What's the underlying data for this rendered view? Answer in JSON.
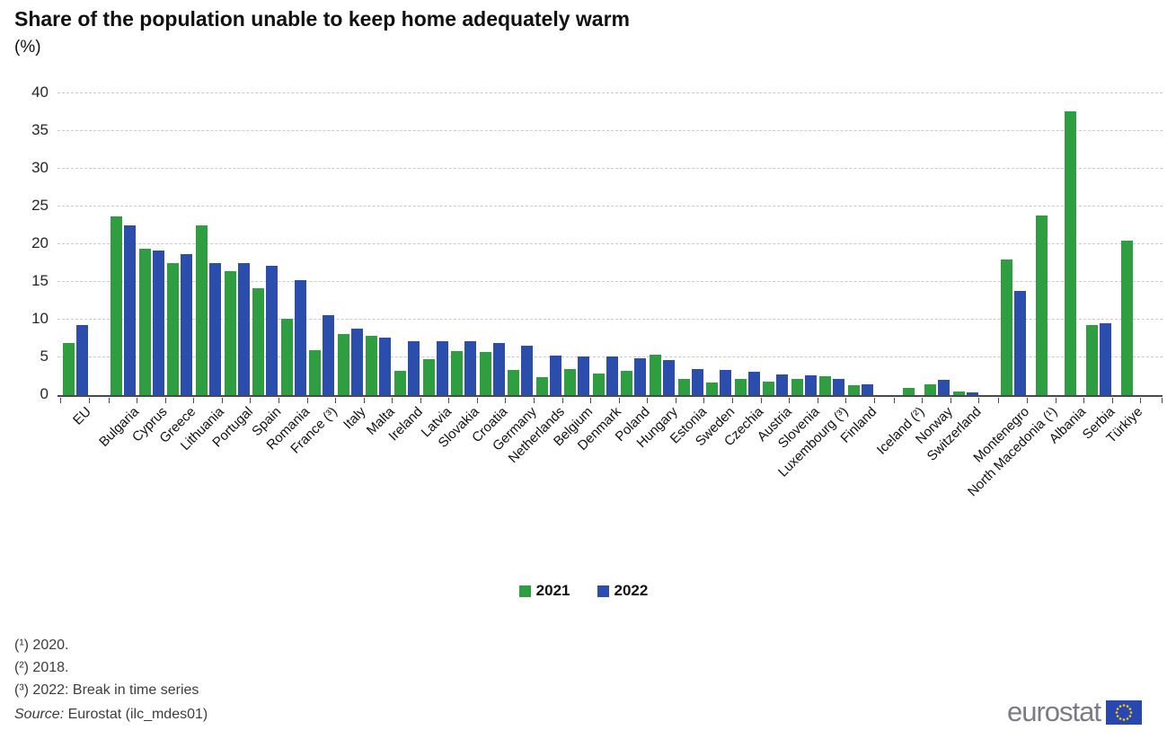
{
  "title": "Share of the population unable to keep home adequately warm",
  "subtitle": "(%)",
  "legend": {
    "items": [
      {
        "label": "2021",
        "color": "#2F9E40"
      },
      {
        "label": "2022",
        "color": "#2B4EAD"
      }
    ]
  },
  "footnotes": [
    "(¹) 2020.",
    "(²) 2018.",
    "(³) 2022: Break in time series"
  ],
  "source": {
    "label": "Source:",
    "text": "Eurostat (ilc_mdes01)"
  },
  "logo": {
    "text": "eurostat",
    "flag_color": "#2847B0",
    "star_color": "#FFCC00"
  },
  "chart_data": {
    "type": "bar",
    "title": "Share of the population unable to keep home adequately warm",
    "ylabel": "(%)",
    "ylim": [
      0,
      40
    ],
    "yticks": [
      0,
      5,
      10,
      15,
      20,
      25,
      30,
      35,
      40
    ],
    "grid": true,
    "legend_position": "bottom",
    "categories": [
      "EU",
      "Bulgaria",
      "Cyprus",
      "Greece",
      "Lithuania",
      "Portugal",
      "Spain",
      "Romania",
      "France (³)",
      "Italy",
      "Malta",
      "Ireland",
      "Latvia",
      "Slovakia",
      "Croatia",
      "Germany",
      "Netherlands",
      "Belgium",
      "Denmark",
      "Poland",
      "Hungary",
      "Estonia",
      "Sweden",
      "Czechia",
      "Austria",
      "Slovenia",
      "Luxembourg (³)",
      "Finland",
      "Iceland (²)",
      "Norway",
      "Switzerland",
      "Montenegro",
      "North Macedonia (¹)",
      "Albania",
      "Serbia",
      "Türkiye"
    ],
    "series": [
      {
        "name": "2021",
        "color": "#2F9E40",
        "values": [
          6.9,
          23.7,
          19.4,
          17.5,
          22.5,
          16.4,
          14.2,
          10.1,
          5.9,
          8.1,
          7.8,
          3.2,
          4.8,
          5.8,
          5.7,
          3.3,
          2.4,
          3.5,
          2.9,
          3.2,
          5.4,
          2.1,
          1.7,
          2.2,
          1.8,
          2.1,
          2.5,
          1.3,
          0.9,
          1.4,
          0.5,
          18.0,
          23.8,
          37.6,
          9.3,
          20.5
        ]
      },
      {
        "name": "2022",
        "color": "#2B4EAD",
        "values": [
          9.3,
          22.5,
          19.2,
          18.7,
          17.5,
          17.5,
          17.1,
          15.2,
          10.6,
          8.8,
          7.6,
          7.1,
          7.1,
          7.2,
          6.9,
          6.6,
          5.2,
          5.1,
          5.1,
          4.9,
          4.7,
          3.4,
          3.3,
          3.1,
          2.7,
          2.6,
          2.1,
          1.4,
          null,
          2.0,
          0.4,
          13.8,
          null,
          null,
          9.5,
          null
        ]
      }
    ],
    "group_breaks_after": [
      "EU",
      "Finland",
      "Switzerland"
    ]
  }
}
